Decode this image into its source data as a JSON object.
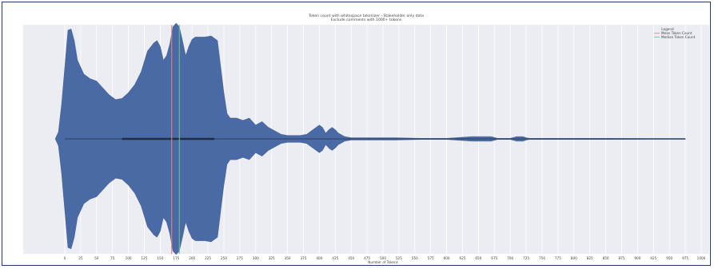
{
  "chart_data": {
    "type": "violin",
    "title": "Token count with whitespace tokenizer - Stakeholder only data",
    "subtitle": "Exclude comments with 1000+ tokens",
    "xlabel": "Number of Tokens",
    "ylabel": "",
    "xlim": [
      -15,
      1000
    ],
    "x_ticks": [
      0,
      25,
      50,
      75,
      100,
      125,
      150,
      175,
      200,
      225,
      250,
      275,
      300,
      325,
      350,
      375,
      400,
      425,
      450,
      475,
      500,
      525,
      550,
      575,
      600,
      625,
      650,
      675,
      700,
      725,
      750,
      775,
      800,
      825,
      850,
      875,
      900,
      925,
      950,
      975,
      1000
    ],
    "grid": true,
    "legend": {
      "title": "Legend",
      "placement": "top-right",
      "entries": [
        {
          "label": "Mean Token Count",
          "color": "#e08080"
        },
        {
          "label": "Median Token Count",
          "color": "#6fbf8f"
        }
      ]
    },
    "mean_token_count": 168,
    "median_token_count": 180,
    "whisker_range": [
      0,
      975
    ],
    "box_range": [
      90,
      235
    ],
    "violin_color": "#4a6aa5",
    "density_profile": {
      "x": [
        -15,
        -10,
        -5,
        0,
        5,
        10,
        15,
        20,
        30,
        40,
        50,
        60,
        70,
        80,
        90,
        100,
        110,
        120,
        130,
        140,
        145,
        150,
        155,
        160,
        165,
        170,
        175,
        180,
        185,
        190,
        195,
        200,
        205,
        210,
        220,
        230,
        240,
        250,
        255,
        260,
        270,
        280,
        290,
        300,
        310,
        320,
        330,
        340,
        350,
        360,
        370,
        380,
        390,
        400,
        405,
        410,
        415,
        420,
        425,
        430,
        440,
        450,
        460,
        470,
        490,
        520,
        560,
        600,
        640,
        660,
        670,
        680,
        690,
        700,
        710,
        720,
        725,
        730,
        740,
        760,
        800,
        860,
        920,
        975
      ],
      "density": [
        0.0,
        0.06,
        0.3,
        0.62,
        0.94,
        0.95,
        0.85,
        0.68,
        0.56,
        0.52,
        0.5,
        0.44,
        0.38,
        0.34,
        0.35,
        0.4,
        0.47,
        0.58,
        0.76,
        0.83,
        0.85,
        0.8,
        0.68,
        0.72,
        0.82,
        0.97,
        1.0,
        0.97,
        0.85,
        0.72,
        0.8,
        0.86,
        0.88,
        0.88,
        0.88,
        0.89,
        0.85,
        0.4,
        0.22,
        0.18,
        0.18,
        0.16,
        0.18,
        0.12,
        0.15,
        0.1,
        0.07,
        0.04,
        0.03,
        0.03,
        0.03,
        0.04,
        0.08,
        0.12,
        0.1,
        0.05,
        0.08,
        0.1,
        0.08,
        0.05,
        0.02,
        0.01,
        0.01,
        0.01,
        0.01,
        0.01,
        0.005,
        0.005,
        0.02,
        0.02,
        0.02,
        0.005,
        0.005,
        0.005,
        0.02,
        0.02,
        0.01,
        0.005,
        0.005,
        0.005,
        0.005,
        0.005,
        0.004,
        0.004
      ]
    }
  }
}
